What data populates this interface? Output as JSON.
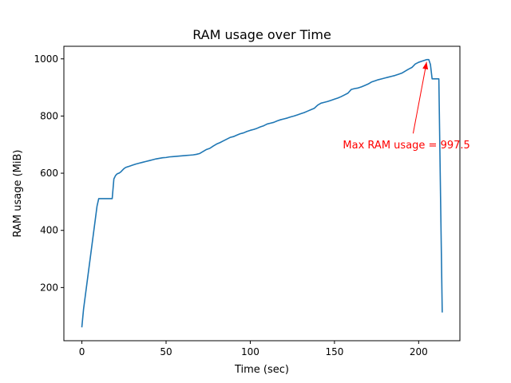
{
  "chart_data": {
    "type": "line",
    "title": "RAM usage over Time",
    "xlabel": "Time (sec)",
    "ylabel": "RAM usage (MiB)",
    "xlim": [
      -10.7,
      224.5
    ],
    "ylim": [
      14,
      1044
    ],
    "xticks": [
      0,
      50,
      100,
      150,
      200
    ],
    "yticks": [
      200,
      400,
      600,
      800,
      1000
    ],
    "grid": false,
    "colors": {
      "line": "#1f77b4",
      "annotation": "#ff0000"
    },
    "series": [
      {
        "x": [
          0,
          1,
          2,
          3,
          4,
          5,
          6,
          7,
          8,
          9,
          10,
          11,
          12,
          13,
          14,
          15,
          16,
          17,
          18,
          19,
          20,
          21,
          22,
          23,
          24,
          25,
          26,
          27,
          28,
          29,
          30,
          32,
          34,
          36,
          38,
          40,
          42,
          44,
          46,
          48,
          50,
          52,
          54,
          56,
          58,
          60,
          62,
          64,
          66,
          68,
          70,
          72,
          74,
          76,
          78,
          80,
          82,
          84,
          86,
          88,
          90,
          92,
          94,
          96,
          98,
          100,
          102,
          104,
          106,
          108,
          110,
          112,
          114,
          116,
          118,
          120,
          122,
          124,
          126,
          128,
          130,
          132,
          134,
          136,
          138,
          140,
          142,
          144,
          146,
          148,
          150,
          152,
          154,
          156,
          158,
          160,
          162,
          164,
          166,
          168,
          170,
          172,
          174,
          176,
          178,
          180,
          182,
          184,
          186,
          188,
          190,
          192,
          194,
          196,
          198,
          200,
          202,
          204,
          205,
          206,
          207,
          208,
          209,
          210,
          211,
          212,
          213,
          214
        ],
        "y": [
          63,
          125,
          170,
          215,
          260,
          305,
          350,
          395,
          440,
          485,
          511,
          511,
          511,
          511,
          511,
          511,
          511,
          511,
          511,
          580,
          592,
          598,
          600,
          604,
          610,
          616,
          620,
          622,
          624,
          626,
          628,
          632,
          635,
          638,
          641,
          644,
          647,
          650,
          652,
          654,
          655,
          657,
          658,
          659,
          660,
          661,
          662,
          663,
          664,
          666,
          669,
          676,
          683,
          687,
          695,
          702,
          707,
          713,
          719,
          725,
          728,
          733,
          738,
          741,
          746,
          750,
          753,
          757,
          762,
          766,
          772,
          775,
          778,
          783,
          787,
          790,
          793,
          797,
          800,
          804,
          808,
          812,
          817,
          822,
          827,
          838,
          845,
          848,
          851,
          855,
          859,
          863,
          868,
          874,
          880,
          893,
          896,
          898,
          902,
          907,
          912,
          919,
          923,
          927,
          930,
          933,
          936,
          939,
          942,
          946,
          950,
          957,
          964,
          970,
          982,
          988,
          992,
          996,
          997.5,
          997.5,
          980,
          930,
          930,
          930,
          930,
          930,
          520,
          115
        ]
      }
    ],
    "annotation": {
      "text": "Max RAM usage = 997.5",
      "xy": [
        205,
        997.5
      ],
      "xytext": [
        155,
        700
      ]
    }
  }
}
